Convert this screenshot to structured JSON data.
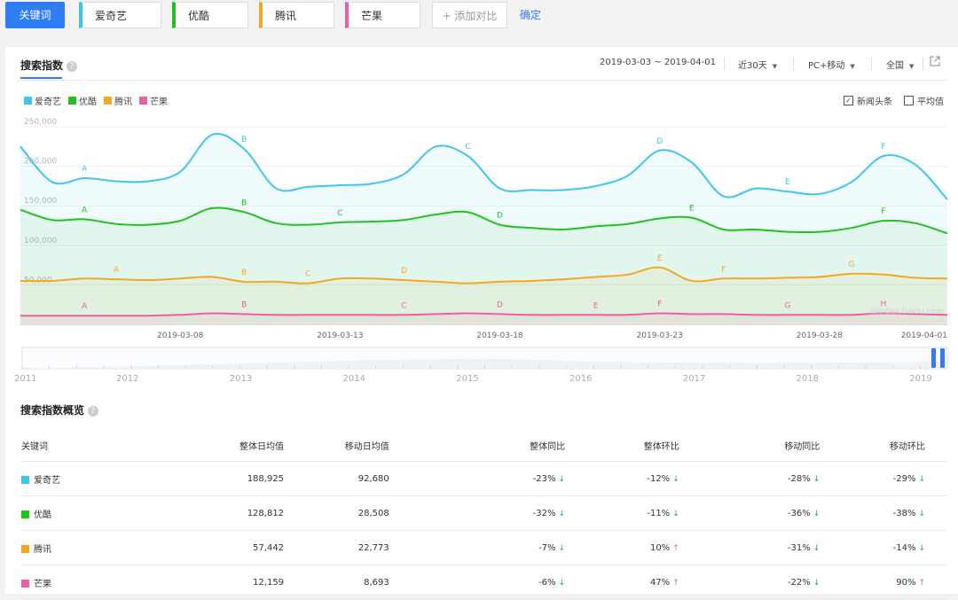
{
  "tabs": {
    "active": "关键词",
    "keywords": [
      {
        "name": "爱奇艺",
        "color": "#3fc6ef"
      },
      {
        "name": "优酷",
        "color": "#22c21e"
      },
      {
        "name": "腾讯",
        "color": "#f5a623"
      },
      {
        "name": "芒果",
        "color": "#ec5fa3"
      }
    ],
    "add_label": "+ 添加对比",
    "confirm_label": "确定"
  },
  "header": {
    "title": "搜索指数",
    "help": "?",
    "date_range": "2019-03-03 ~ 2019-04-01",
    "period": "近30天",
    "device": "PC+移动",
    "region": "全国",
    "dropdown_glyph": "▼",
    "external_icon": "external-link-icon"
  },
  "legend_options": {
    "news_label": "新闻头条",
    "news_checked": true,
    "avg_label": "平均值",
    "avg_checked": false,
    "check_glyph": "✓"
  },
  "chart_data": {
    "type": "area",
    "ylim": [
      0,
      250000
    ],
    "y_ticks": [
      "250,000",
      "200,000",
      "150,000",
      "100,000",
      "50,000"
    ],
    "x_ticks": [
      "2019-03-08",
      "2019-03-13",
      "2019-03-18",
      "2019-03-23",
      "2019-03-28",
      "2019-04-01"
    ],
    "x": [
      "03-03",
      "03-04",
      "03-05",
      "03-06",
      "03-07",
      "03-08",
      "03-09",
      "03-10",
      "03-11",
      "03-12",
      "03-13",
      "03-14",
      "03-15",
      "03-16",
      "03-17",
      "03-18",
      "03-19",
      "03-20",
      "03-21",
      "03-22",
      "03-23",
      "03-24",
      "03-25",
      "03-26",
      "03-27",
      "03-28",
      "03-29",
      "03-30",
      "03-31",
      "04-01"
    ],
    "series": [
      {
        "name": "爱奇艺",
        "color": "#3fc6ef",
        "values": [
          225000,
          180000,
          185000,
          181000,
          181000,
          193000,
          240000,
          222000,
          172000,
          174000,
          176000,
          178000,
          190000,
          225000,
          213000,
          172000,
          170000,
          170000,
          175000,
          188000,
          220000,
          205000,
          162000,
          172000,
          168000,
          165000,
          180000,
          213000,
          202000,
          158000
        ]
      },
      {
        "name": "优酷",
        "color": "#22c21e",
        "values": [
          145000,
          132000,
          133000,
          127000,
          126000,
          131000,
          147000,
          142000,
          128000,
          126000,
          129000,
          130000,
          132000,
          139000,
          142000,
          126000,
          122000,
          120000,
          124000,
          127000,
          134000,
          135000,
          120000,
          120000,
          117000,
          117000,
          122000,
          131000,
          128000,
          115000
        ]
      },
      {
        "name": "腾讯",
        "color": "#f5a623",
        "values": [
          55000,
          55000,
          58000,
          57000,
          56000,
          58000,
          60000,
          54000,
          54000,
          52000,
          58000,
          58000,
          56000,
          54000,
          52000,
          54000,
          55000,
          57000,
          60000,
          63000,
          72000,
          55000,
          58000,
          58000,
          59000,
          60000,
          64000,
          63000,
          59000,
          58000
        ]
      },
      {
        "name": "芒果",
        "color": "#ec5fa3",
        "values": [
          11000,
          11000,
          11000,
          11000,
          11000,
          12000,
          14000,
          13000,
          12000,
          12000,
          12000,
          12000,
          12000,
          13000,
          14000,
          13000,
          12000,
          12000,
          12000,
          12000,
          14000,
          13000,
          13000,
          12000,
          12000,
          12000,
          12000,
          14000,
          13000,
          12000
        ]
      }
    ],
    "annotations": [
      {
        "series": 0,
        "items": [
          {
            "i": 2,
            "text": "A"
          },
          {
            "i": 7,
            "text": "B"
          },
          {
            "i": 14,
            "text": "C"
          },
          {
            "i": 20,
            "text": "D"
          },
          {
            "i": 24,
            "text": "E"
          },
          {
            "i": 27,
            "text": "F"
          }
        ]
      },
      {
        "series": 1,
        "items": [
          {
            "i": 2,
            "text": "A"
          },
          {
            "i": 7,
            "text": "B"
          },
          {
            "i": 10,
            "text": "C"
          },
          {
            "i": 15,
            "text": "D"
          },
          {
            "i": 21,
            "text": "E"
          },
          {
            "i": 27,
            "text": "F"
          }
        ]
      },
      {
        "series": 2,
        "items": [
          {
            "i": 3,
            "text": "A"
          },
          {
            "i": 7,
            "text": "B"
          },
          {
            "i": 9,
            "text": "C"
          },
          {
            "i": 12,
            "text": "D"
          },
          {
            "i": 20,
            "text": "E"
          },
          {
            "i": 22,
            "text": "F"
          },
          {
            "i": 26,
            "text": "G"
          }
        ]
      },
      {
        "series": 3,
        "items": [
          {
            "i": 2,
            "text": "A"
          },
          {
            "i": 7,
            "text": "B"
          },
          {
            "i": 12,
            "text": "C"
          },
          {
            "i": 15,
            "text": "D"
          },
          {
            "i": 18,
            "text": "E"
          },
          {
            "i": 20,
            "text": "F"
          },
          {
            "i": 24,
            "text": "G"
          },
          {
            "i": 27,
            "text": "H"
          }
        ]
      }
    ],
    "watermark": "@index.baidu.com",
    "slider_years": [
      "2011",
      "2012",
      "2013",
      "2014",
      "2015",
      "2016",
      "2017",
      "2018",
      "2019"
    ]
  },
  "overview": {
    "title": "搜索指数概览",
    "headers": [
      "关键词",
      "整体日均值",
      "移动日均值",
      "整体同比",
      "整体环比",
      "移动同比",
      "移动环比"
    ],
    "rows": [
      {
        "name": "爱奇艺",
        "color": "#3fc6ef",
        "total": "188,925",
        "mobile": "92,680",
        "c1": "-23%",
        "c1_dir": "↓",
        "c2": "-12%",
        "c2_dir": "↓",
        "c3": "-28%",
        "c3_dir": "↓",
        "c4": "-29%",
        "c4_dir": "↓"
      },
      {
        "name": "优酷",
        "color": "#22c21e",
        "total": "128,812",
        "mobile": "28,508",
        "c1": "-32%",
        "c1_dir": "↓",
        "c2": "-11%",
        "c2_dir": "↓",
        "c3": "-36%",
        "c3_dir": "↓",
        "c4": "-38%",
        "c4_dir": "↓"
      },
      {
        "name": "腾讯",
        "color": "#f5a623",
        "total": "57,442",
        "mobile": "22,773",
        "c1": "-7%",
        "c1_dir": "↓",
        "c2": "10%",
        "c2_dir": "↑",
        "c3": "-31%",
        "c3_dir": "↓",
        "c4": "-14%",
        "c4_dir": "↓"
      },
      {
        "name": "芒果",
        "color": "#ec5fa3",
        "total": "12,159",
        "mobile": "8,693",
        "c1": "-6%",
        "c1_dir": "↓",
        "c2": "47%",
        "c2_dir": "↑",
        "c3": "-22%",
        "c3_dir": "↓",
        "c4": "90%",
        "c4_dir": "↑"
      }
    ]
  }
}
